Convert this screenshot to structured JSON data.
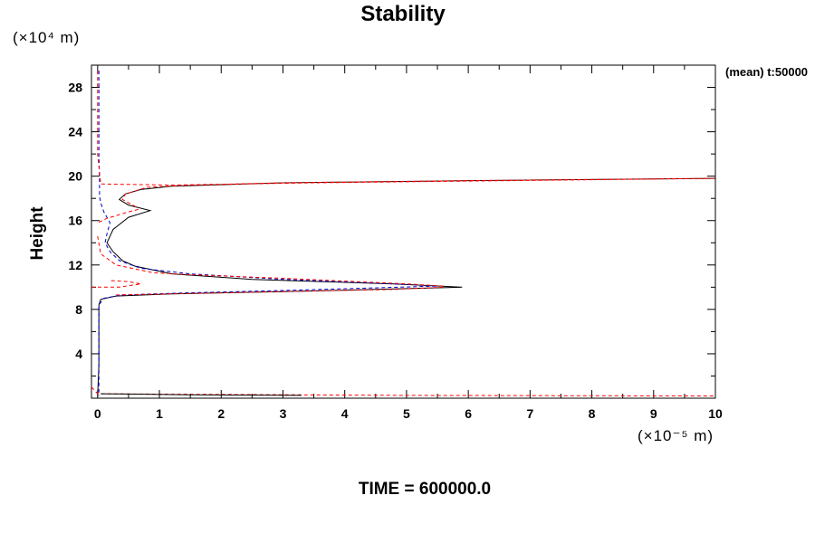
{
  "chart_data": {
    "type": "line",
    "title": "Stability",
    "ylabel": "Height",
    "y_unit_label": "(×10⁴ m)",
    "x_unit_label": "(×10⁻⁵ m)",
    "annotation": "(mean) t:50000",
    "footer": "TIME = 600000.0",
    "xlim": [
      -0.1,
      10
    ],
    "ylim": [
      0,
      30
    ],
    "x_ticks": [
      0,
      1,
      2,
      3,
      4,
      5,
      6,
      7,
      8,
      9,
      10
    ],
    "y_ticks": [
      4,
      8,
      12,
      16,
      20,
      24,
      28
    ],
    "grid": false,
    "series": [
      {
        "color": "#000000",
        "dash": "solid",
        "points": [
          [
            0.0,
            0.2
          ],
          [
            0.02,
            3
          ],
          [
            0.02,
            8.4
          ],
          [
            0.05,
            8.9
          ],
          [
            0.3,
            9.2
          ],
          [
            1.2,
            9.4
          ],
          [
            3,
            9.6
          ],
          [
            4.5,
            9.8
          ],
          [
            5.9,
            10.0
          ],
          [
            4.8,
            10.3
          ],
          [
            2.5,
            10.7
          ],
          [
            1.2,
            11.2
          ],
          [
            0.6,
            11.9
          ],
          [
            0.4,
            12.4
          ],
          [
            0.25,
            13.2
          ],
          [
            0.15,
            14.0
          ],
          [
            0.25,
            15.2
          ],
          [
            0.5,
            16.3
          ],
          [
            0.85,
            16.9
          ],
          [
            0.5,
            17.4
          ],
          [
            0.35,
            17.9
          ],
          [
            0.45,
            18.4
          ],
          [
            0.7,
            18.8
          ],
          [
            1.2,
            19.1
          ],
          [
            3,
            19.4
          ],
          [
            6,
            19.6
          ],
          [
            10,
            19.8
          ]
        ]
      },
      {
        "color": "#0000cc",
        "dash": "dashed",
        "points": [
          [
            0.02,
            29.5
          ],
          [
            0.02,
            22
          ],
          [
            0.03,
            19.5
          ],
          [
            0.03,
            18.2
          ],
          [
            0.05,
            17.6
          ],
          [
            0.1,
            16.8
          ],
          [
            0.2,
            15.8
          ],
          [
            0.15,
            14.8
          ],
          [
            0.12,
            14.0
          ],
          [
            0.2,
            13.2
          ],
          [
            0.35,
            12.4
          ],
          [
            0.7,
            11.7
          ],
          [
            1.5,
            11.2
          ],
          [
            3,
            10.7
          ],
          [
            5.2,
            10.2
          ],
          [
            5.5,
            10.1
          ],
          [
            3,
            9.7
          ],
          [
            1.5,
            9.5
          ],
          [
            0.4,
            9.3
          ],
          [
            0.1,
            9.0
          ],
          [
            0.02,
            8.4
          ],
          [
            0.02,
            0.2
          ]
        ]
      },
      {
        "color": "#ff0000",
        "dash": "dashed",
        "points": [
          [
            0.0,
            29.5
          ],
          [
            0.0,
            22
          ],
          [
            0.05,
            19.3
          ],
          [
            1.2,
            19.2
          ],
          [
            3.5,
            19.4
          ],
          [
            10,
            19.8
          ],
          [
            8,
            19.7
          ],
          [
            6,
            19.6
          ],
          [
            3,
            19.4
          ],
          [
            1.5,
            19.2
          ],
          [
            0.8,
            19.0
          ],
          [
            0.45,
            18.4
          ],
          [
            0.4,
            17.9
          ],
          [
            0.6,
            17.3
          ],
          [
            0.65,
            17.0
          ],
          [
            0.45,
            16.7
          ],
          [
            0.15,
            16.2
          ],
          [
            0.0,
            15.8
          ]
        ]
      },
      {
        "color": "#ff0000",
        "dash": "dashed",
        "points": [
          [
            0.0,
            14.6
          ],
          [
            0.05,
            13.0
          ],
          [
            0.3,
            12.0
          ],
          [
            0.9,
            11.3
          ],
          [
            1.6,
            11.1
          ],
          [
            3,
            10.8
          ],
          [
            5,
            10.3
          ],
          [
            5.6,
            10.1
          ]
        ]
      },
      {
        "color": "#ff0000",
        "dash": "dashed",
        "points": [
          [
            -0.1,
            10.0
          ],
          [
            0.35,
            10.0
          ],
          [
            0.7,
            10.3
          ],
          [
            0.5,
            10.5
          ],
          [
            0.2,
            10.6
          ]
        ]
      },
      {
        "color": "#ff0000",
        "dash": "dashed",
        "points": [
          [
            0.3,
            9.3
          ],
          [
            1.2,
            9.4
          ],
          [
            3,
            9.6
          ],
          [
            4.8,
            9.8
          ],
          [
            5.6,
            10.0
          ]
        ]
      },
      {
        "color": "#ff0000",
        "dash": "dashed",
        "points": [
          [
            -0.1,
            1.0
          ],
          [
            0.0,
            0.4
          ],
          [
            1.5,
            0.35
          ],
          [
            3.3,
            0.3
          ],
          [
            5,
            0.25
          ],
          [
            10,
            0.2
          ]
        ]
      },
      {
        "color": "#000000",
        "dash": "solid",
        "points": [
          [
            0.05,
            0.4
          ],
          [
            1.5,
            0.3
          ],
          [
            3.3,
            0.25
          ]
        ]
      }
    ]
  }
}
